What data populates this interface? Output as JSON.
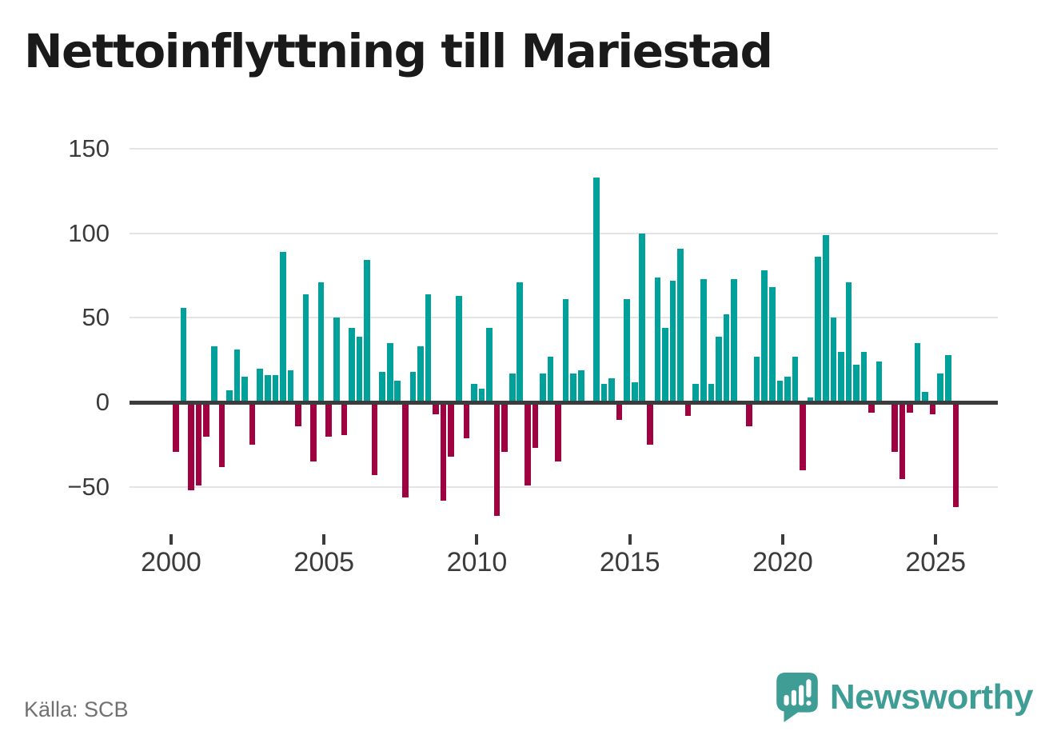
{
  "title": "Nettoinflyttning till Mariestad",
  "source": "Källa: SCB",
  "logo": {
    "text": "Newsworthy",
    "color": "#3E9D95"
  },
  "chart_data": {
    "type": "bar",
    "title": "Nettoinflyttning till Mariestad",
    "xlabel": "",
    "ylabel": "",
    "frequency": "quarterly",
    "start_period": "2000Q1",
    "end_period": "2025Q3",
    "values": [
      -28,
      56,
      -51,
      -48,
      -19,
      33,
      -37,
      7,
      31,
      15,
      -24,
      20,
      16,
      16,
      89,
      19,
      -13,
      64,
      -34,
      71,
      -19,
      50,
      -18,
      44,
      39,
      84,
      -42,
      18,
      35,
      13,
      -55,
      18,
      33,
      64,
      -6,
      -57,
      -31,
      63,
      -20,
      11,
      8,
      44,
      -66,
      -28,
      17,
      71,
      -48,
      -26,
      17,
      27,
      -34,
      61,
      17,
      19,
      0,
      133,
      11,
      14,
      -9,
      61,
      12,
      100,
      -24,
      74,
      44,
      72,
      91,
      -7,
      11,
      73,
      11,
      39,
      52,
      73,
      0,
      -13,
      27,
      78,
      68,
      13,
      15,
      27,
      -39,
      3,
      86,
      99,
      50,
      30,
      71,
      22,
      30,
      -5,
      24,
      0,
      -28,
      -44,
      -5,
      35,
      6,
      -6,
      17,
      28,
      -61
    ],
    "positive_color": "#00a19a",
    "negative_color": "#a00241",
    "ylim": [
      -79,
      157
    ],
    "y_ticks": [
      {
        "value": 150,
        "label": "150"
      },
      {
        "value": 100,
        "label": "100"
      },
      {
        "value": 50,
        "label": "50"
      },
      {
        "value": 0,
        "label": "0"
      },
      {
        "value": -50,
        "label": "−50"
      }
    ],
    "x_ticks": [
      {
        "year": 2000,
        "label": "2000"
      },
      {
        "year": 2005,
        "label": "2005"
      },
      {
        "year": 2010,
        "label": "2010"
      },
      {
        "year": 2015,
        "label": "2015"
      },
      {
        "year": 2020,
        "label": "2020"
      },
      {
        "year": 2025,
        "label": "2025"
      }
    ],
    "grid": "horizontal",
    "legend": "none"
  }
}
